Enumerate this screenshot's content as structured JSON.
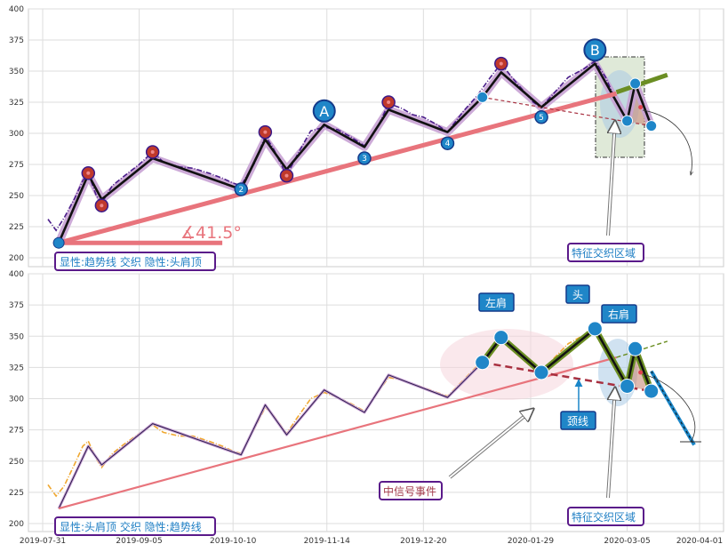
{
  "chart_data": [
    {
      "type": "line",
      "panel": "top",
      "ylim": [
        197,
        400
      ],
      "y_ticks": [
        200,
        225,
        250,
        275,
        300,
        325,
        350,
        375,
        400
      ],
      "grid": true,
      "series": [
        {
          "values": [
            [
              "2019-08-02",
              231
            ],
            [
              "2019-08-05",
              222
            ],
            [
              "2019-08-08",
              232
            ],
            [
              "2019-08-12",
              248
            ],
            [
              "2019-08-15",
              262
            ],
            [
              "2019-08-17",
              268
            ],
            [
              "2019-08-20",
              250
            ],
            [
              "2019-08-22",
              244
            ],
            [
              "2019-08-26",
              258
            ],
            [
              "2019-08-30",
              265
            ],
            [
              "2019-09-05",
              275
            ],
            [
              "2019-09-10",
              285
            ],
            [
              "2019-09-14",
              277
            ],
            [
              "2019-09-20",
              273
            ],
            [
              "2019-09-25",
              272
            ],
            [
              "2019-10-01",
              268
            ],
            [
              "2019-10-06",
              264
            ],
            [
              "2019-10-10",
              260
            ],
            [
              "2019-10-13",
              258
            ],
            [
              "2019-10-18",
              276
            ],
            [
              "2019-10-22",
              298
            ],
            [
              "2019-10-25",
              288
            ],
            [
              "2019-10-30",
              266
            ],
            [
              "2019-11-03",
              283
            ],
            [
              "2019-11-08",
              302
            ],
            [
              "2019-11-13",
              305
            ],
            [
              "2019-11-18",
              303
            ],
            [
              "2019-11-23",
              297
            ],
            [
              "2019-11-28",
              290
            ],
            [
              "2019-12-03",
              305
            ],
            [
              "2019-12-07",
              324
            ],
            [
              "2019-12-12",
              320
            ],
            [
              "2019-12-16",
              315
            ],
            [
              "2019-12-20",
              313
            ],
            [
              "2019-12-25",
              307
            ],
            [
              "2019-12-29",
              301
            ],
            [
              "2020-01-04",
              318
            ],
            [
              "2020-01-09",
              330
            ],
            [
              "2020-01-14",
              345
            ],
            [
              "2020-01-18",
              356
            ],
            [
              "2020-01-22",
              345
            ],
            [
              "2020-01-26",
              335
            ],
            [
              "2020-01-30",
              325
            ],
            [
              "2020-02-02",
              321
            ],
            [
              "2020-02-07",
              333
            ],
            [
              "2020-02-12",
              345
            ],
            [
              "2020-02-18",
              352
            ],
            [
              "2020-02-22",
              358
            ],
            [
              "2020-02-26",
              345
            ],
            [
              "2020-02-29",
              330
            ],
            [
              "2020-03-03",
              318
            ],
            [
              "2020-03-05",
              310
            ],
            [
              "2020-03-08",
              340
            ],
            [
              "2020-03-11",
              324
            ],
            [
              "2020-03-14",
              306
            ]
          ]
        },
        {
          "values": [
            [
              "2019-08-06",
              212
            ],
            [
              "2019-08-17",
              267
            ],
            [
              "2019-08-22",
              247
            ],
            [
              "2019-09-10",
              280
            ],
            [
              "2019-10-13",
              255
            ],
            [
              "2019-10-22",
              295
            ],
            [
              "2019-10-30",
              271
            ],
            [
              "2019-11-13",
              307
            ],
            [
              "2019-11-28",
              289
            ],
            [
              "2019-12-07",
              319
            ],
            [
              "2019-12-29",
              301
            ],
            [
              "2020-01-11",
              329
            ],
            [
              "2020-01-18",
              349
            ],
            [
              "2020-02-02",
              321
            ],
            [
              "2020-02-22",
              356
            ],
            [
              "2020-03-05",
              310
            ],
            [
              "2020-03-08",
              340
            ],
            [
              "2020-03-14",
              306
            ]
          ]
        },
        {
          "values": [
            [
              "2019-08-06",
              212
            ],
            [
              "2020-03-01",
              332
            ]
          ]
        },
        {
          "values": [
            [
              "2020-03-01",
              333
            ],
            [
              "2020-03-20",
              347
            ]
          ]
        },
        {
          "values": [
            [
              "2020-01-11",
              329
            ],
            [
              "2020-03-14",
              306
            ]
          ]
        }
      ],
      "numbered_points": [
        {
          "label": "2",
          "x": "2019-10-13",
          "y": 255
        },
        {
          "label": "3",
          "x": "2019-11-28",
          "y": 280
        },
        {
          "label": "4",
          "x": "2019-12-29",
          "y": 292
        },
        {
          "label": "5",
          "x": "2020-02-02",
          "y": 313
        }
      ],
      "apex_points": [
        {
          "label": "A",
          "x": "2019-11-13",
          "y": 318
        },
        {
          "label": "B",
          "x": "2020-02-22",
          "y": 367
        }
      ],
      "pivot_points": [
        {
          "x": "2019-08-17",
          "y": 268
        },
        {
          "x": "2019-08-22",
          "y": 242
        },
        {
          "x": "2019-09-10",
          "y": 285
        },
        {
          "x": "2019-10-22",
          "y": 301
        },
        {
          "x": "2019-10-30",
          "y": 266
        },
        {
          "x": "2019-12-07",
          "y": 325
        },
        {
          "x": "2020-01-18",
          "y": 356
        }
      ],
      "angle_label": "∡41.5°",
      "bottom_left_box": "显性:趋势线 交织 隐性:头肩顶",
      "zone_box": "特征交织区域"
    },
    {
      "type": "line",
      "panel": "bottom",
      "ylim": [
        193,
        400
      ],
      "y_ticks": [
        200,
        225,
        250,
        275,
        300,
        325,
        350,
        375,
        400
      ],
      "x_tick_labels": [
        "2019-07-31",
        "2019-09-05",
        "2019-10-10",
        "2019-11-14",
        "2019-12-20",
        "2020-01-29",
        "2020-03-05",
        "2020-04-01"
      ],
      "grid": true,
      "series": [
        {
          "values": [
            [
              "2019-08-02",
              231
            ],
            [
              "2019-08-05",
              222
            ],
            [
              "2019-08-08",
              230
            ],
            [
              "2019-08-12",
              248
            ],
            [
              "2019-08-15",
              262
            ],
            [
              "2019-08-17",
              266
            ],
            [
              "2019-08-20",
              252
            ],
            [
              "2019-08-22",
              245
            ],
            [
              "2019-08-26",
              256
            ],
            [
              "2019-08-30",
              263
            ],
            [
              "2019-09-05",
              272
            ],
            [
              "2019-09-10",
              279
            ],
            [
              "2019-09-14",
              273
            ],
            [
              "2019-09-20",
              270
            ],
            [
              "2019-09-25",
              270
            ],
            [
              "2019-10-01",
              266
            ],
            [
              "2019-10-06",
              262
            ],
            [
              "2019-10-10",
              258
            ],
            [
              "2019-10-13",
              256
            ],
            [
              "2019-10-18",
              276
            ],
            [
              "2019-10-22",
              293
            ],
            [
              "2019-10-25",
              287
            ],
            [
              "2019-10-30",
              272
            ],
            [
              "2019-11-03",
              285
            ],
            [
              "2019-11-08",
              300
            ],
            [
              "2019-11-13",
              305
            ],
            [
              "2019-11-18",
              301
            ],
            [
              "2019-11-23",
              296
            ],
            [
              "2019-11-28",
              290
            ],
            [
              "2019-12-03",
              305
            ],
            [
              "2019-12-07",
              317
            ],
            [
              "2019-12-12",
              315
            ],
            [
              "2019-12-16",
              312
            ],
            [
              "2019-12-20",
              309
            ],
            [
              "2019-12-25",
              305
            ],
            [
              "2019-12-29",
              302
            ],
            [
              "2020-01-04",
              315
            ],
            [
              "2020-01-09",
              326
            ],
            [
              "2020-01-14",
              340
            ],
            [
              "2020-01-18",
              350
            ],
            [
              "2020-01-22",
              343
            ],
            [
              "2020-01-26",
              333
            ],
            [
              "2020-01-30",
              325
            ],
            [
              "2020-02-02",
              321
            ],
            [
              "2020-02-07",
              333
            ],
            [
              "2020-02-12",
              344
            ],
            [
              "2020-02-18",
              351
            ],
            [
              "2020-02-22",
              357
            ],
            [
              "2020-02-26",
              344
            ],
            [
              "2020-02-29",
              330
            ],
            [
              "2020-03-03",
              318
            ],
            [
              "2020-03-05",
              310
            ],
            [
              "2020-03-08",
              339
            ],
            [
              "2020-03-11",
              322
            ],
            [
              "2020-03-14",
              306
            ]
          ]
        },
        {
          "values": [
            [
              "2019-08-06",
              212
            ],
            [
              "2019-08-17",
              262
            ],
            [
              "2019-08-22",
              247
            ],
            [
              "2019-09-10",
              280
            ],
            [
              "2019-10-13",
              255
            ],
            [
              "2019-10-22",
              295
            ],
            [
              "2019-10-30",
              271
            ],
            [
              "2019-11-13",
              307
            ],
            [
              "2019-11-28",
              289
            ],
            [
              "2019-12-07",
              319
            ],
            [
              "2019-12-29",
              301
            ],
            [
              "2020-01-11",
              329
            ],
            [
              "2020-01-18",
              349
            ],
            [
              "2020-02-02",
              321
            ],
            [
              "2020-02-22",
              356
            ],
            [
              "2020-03-05",
              310
            ],
            [
              "2020-03-08",
              340
            ],
            [
              "2020-03-14",
              306
            ]
          ]
        },
        {
          "values": [
            [
              "2019-08-06",
              212
            ],
            [
              "2020-03-01",
              333
            ]
          ]
        },
        {
          "values": [
            [
              "2020-03-01",
              333
            ],
            [
              "2020-03-20",
              346
            ]
          ]
        },
        {
          "values": [
            [
              "2020-01-11",
              329
            ],
            [
              "2020-03-14",
              306
            ]
          ]
        },
        {
          "values": [
            [
              "2020-03-14",
              322
            ],
            [
              "2020-03-30",
              263
            ]
          ]
        }
      ],
      "pattern_points": [
        {
          "x": "2020-01-11",
          "y": 329
        },
        {
          "x": "2020-01-18",
          "y": 349
        },
        {
          "x": "2020-02-02",
          "y": 321
        },
        {
          "x": "2020-02-22",
          "y": 356
        },
        {
          "x": "2020-03-05",
          "y": 310
        },
        {
          "x": "2020-03-08",
          "y": 340
        },
        {
          "x": "2020-03-14",
          "y": 306
        }
      ],
      "labels": {
        "left_shoulder": "左肩",
        "head": "头",
        "right_shoulder": "右肩",
        "neckline": "颈线",
        "mid_signal": "中信号事件",
        "zone": "特征交织区域",
        "bottom_left_box": "显性:头肩顶 交织 隐性:趋势线"
      }
    }
  ]
}
